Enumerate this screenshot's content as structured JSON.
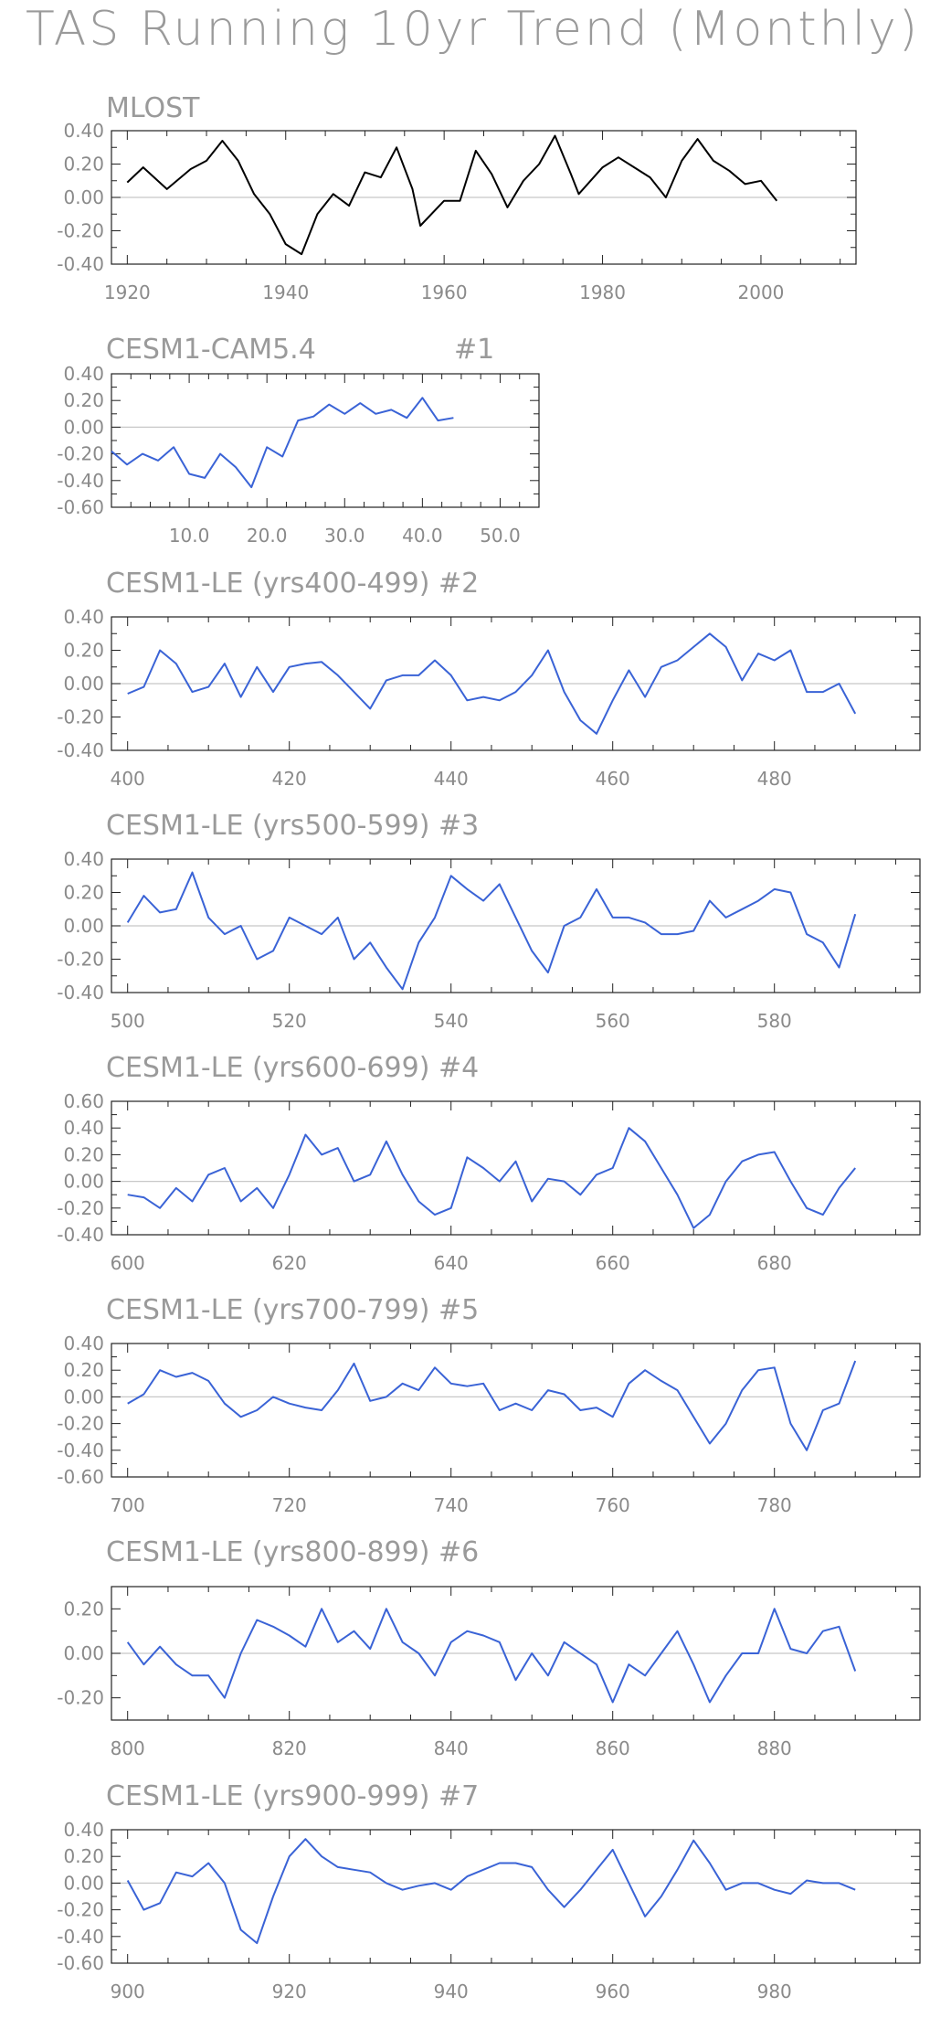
{
  "title": "TAS Running 10yr Trend (Monthly)",
  "chart_data": [
    {
      "type": "line",
      "title": "MLOST",
      "color": "#000000",
      "x": [
        1920,
        1922,
        1925,
        1928,
        1930,
        1932,
        1934,
        1936,
        1938,
        1940,
        1942,
        1944,
        1946,
        1948,
        1950,
        1952,
        1954,
        1956,
        1957,
        1960,
        1962,
        1964,
        1966,
        1968,
        1970,
        1972,
        1974,
        1976,
        1977,
        1980,
        1982,
        1984,
        1986,
        1988,
        1990,
        1992,
        1994,
        1996,
        1998,
        2000,
        2002
      ],
      "y": [
        0.09,
        0.18,
        0.05,
        0.17,
        0.22,
        0.34,
        0.22,
        0.02,
        -0.1,
        -0.28,
        -0.34,
        -0.1,
        0.02,
        -0.05,
        0.15,
        0.12,
        0.3,
        0.05,
        -0.17,
        -0.02,
        -0.02,
        0.28,
        0.14,
        -0.06,
        0.1,
        0.2,
        0.37,
        0.14,
        0.02,
        0.18,
        0.24,
        0.18,
        0.12,
        0.0,
        0.22,
        0.35,
        0.22,
        0.16,
        0.08,
        0.1,
        -0.02
      ],
      "xlim": [
        1918,
        2012
      ],
      "ylim": [
        -0.4,
        0.4
      ],
      "xticks": [
        1920,
        1940,
        1960,
        1980,
        2000
      ],
      "xtick_labels": [
        "1920",
        "1940",
        "1960",
        "1980",
        "2000"
      ],
      "yticks": [
        -0.4,
        -0.2,
        0.0,
        0.2,
        0.4
      ],
      "ytick_labels": [
        "-0.40",
        "-0.20",
        "0.00",
        "0.20",
        "0.40"
      ]
    },
    {
      "type": "line",
      "title": "CESM1-CAM5.4",
      "title_right": "#1",
      "color": "#3a63d6",
      "x": [
        0,
        2,
        4,
        6,
        8,
        10,
        12,
        14,
        16,
        18,
        20,
        22,
        24,
        26,
        28,
        30,
        32,
        34,
        36,
        38,
        40,
        42,
        44
      ],
      "y": [
        -0.18,
        -0.28,
        -0.2,
        -0.25,
        -0.15,
        -0.35,
        -0.38,
        -0.2,
        -0.3,
        -0.45,
        -0.15,
        -0.22,
        0.05,
        0.08,
        0.17,
        0.1,
        0.18,
        0.1,
        0.13,
        0.07,
        0.22,
        0.05,
        0.07
      ],
      "xlim": [
        0,
        55
      ],
      "ylim": [
        -0.6,
        0.4
      ],
      "xticks": [
        10,
        20,
        30,
        40,
        50
      ],
      "xtick_labels": [
        "10.0",
        "20.0",
        "30.0",
        "40.0",
        "50.0"
      ],
      "yticks": [
        -0.6,
        -0.4,
        -0.2,
        0.0,
        0.2,
        0.4
      ],
      "ytick_labels": [
        "-0.60",
        "-0.40",
        "-0.20",
        "0.00",
        "0.20",
        "0.40"
      ]
    },
    {
      "type": "line",
      "title": "CESM1-LE (yrs400-499) #2",
      "color": "#3a63d6",
      "x": [
        400,
        402,
        404,
        406,
        408,
        410,
        412,
        414,
        416,
        418,
        420,
        422,
        424,
        426,
        428,
        430,
        432,
        434,
        436,
        438,
        440,
        442,
        444,
        446,
        448,
        450,
        452,
        454,
        456,
        458,
        460,
        462,
        464,
        466,
        468,
        470,
        472,
        474,
        476,
        478,
        480,
        482,
        484,
        486,
        488,
        490
      ],
      "y": [
        -0.06,
        -0.02,
        0.2,
        0.12,
        -0.05,
        -0.02,
        0.12,
        -0.08,
        0.1,
        -0.05,
        0.1,
        0.12,
        0.13,
        0.05,
        -0.05,
        -0.15,
        0.02,
        0.05,
        0.05,
        0.14,
        0.05,
        -0.1,
        -0.08,
        -0.1,
        -0.05,
        0.05,
        0.2,
        -0.05,
        -0.22,
        -0.3,
        -0.1,
        0.08,
        -0.08,
        0.1,
        0.14,
        0.22,
        0.3,
        0.22,
        0.02,
        0.18,
        0.14,
        0.2,
        -0.05,
        -0.05,
        0.0,
        -0.18
      ],
      "xlim": [
        398,
        498
      ],
      "ylim": [
        -0.4,
        0.4
      ],
      "xticks": [
        400,
        420,
        440,
        460,
        480
      ],
      "xtick_labels": [
        "400",
        "420",
        "440",
        "460",
        "480"
      ],
      "yticks": [
        -0.4,
        -0.2,
        0.0,
        0.2,
        0.4
      ],
      "ytick_labels": [
        "-0.40",
        "-0.20",
        "0.00",
        "0.20",
        "0.40"
      ]
    },
    {
      "type": "line",
      "title": "CESM1-LE (yrs500-599) #3",
      "color": "#3a63d6",
      "x": [
        500,
        502,
        504,
        506,
        508,
        510,
        512,
        514,
        516,
        518,
        520,
        522,
        524,
        526,
        528,
        530,
        532,
        534,
        536,
        538,
        540,
        542,
        544,
        546,
        548,
        550,
        552,
        554,
        556,
        558,
        560,
        562,
        564,
        566,
        568,
        570,
        572,
        574,
        576,
        578,
        580,
        582,
        584,
        586,
        588,
        590
      ],
      "y": [
        0.02,
        0.18,
        0.08,
        0.1,
        0.32,
        0.05,
        -0.05,
        0.0,
        -0.2,
        -0.15,
        0.05,
        0.0,
        -0.05,
        0.05,
        -0.2,
        -0.1,
        -0.25,
        -0.38,
        -0.1,
        0.05,
        0.3,
        0.22,
        0.15,
        0.25,
        0.05,
        -0.15,
        -0.28,
        0.0,
        0.05,
        0.22,
        0.05,
        0.05,
        0.02,
        -0.05,
        -0.05,
        -0.03,
        0.15,
        0.05,
        0.1,
        0.15,
        0.22,
        0.2,
        -0.05,
        -0.1,
        -0.25,
        0.07
      ],
      "xlim": [
        498,
        598
      ],
      "ylim": [
        -0.4,
        0.4
      ],
      "xticks": [
        500,
        520,
        540,
        560,
        580
      ],
      "xtick_labels": [
        "500",
        "520",
        "540",
        "560",
        "580"
      ],
      "yticks": [
        -0.4,
        -0.2,
        0.0,
        0.2,
        0.4
      ],
      "ytick_labels": [
        "-0.40",
        "-0.20",
        "0.00",
        "0.20",
        "0.40"
      ]
    },
    {
      "type": "line",
      "title": "CESM1-LE (yrs600-699) #4",
      "color": "#3a63d6",
      "x": [
        600,
        602,
        604,
        606,
        608,
        610,
        612,
        614,
        616,
        618,
        620,
        622,
        624,
        626,
        628,
        630,
        632,
        634,
        636,
        638,
        640,
        642,
        644,
        646,
        648,
        650,
        652,
        654,
        656,
        658,
        660,
        662,
        664,
        666,
        668,
        670,
        672,
        674,
        676,
        678,
        680,
        682,
        684,
        686,
        688,
        690
      ],
      "y": [
        -0.1,
        -0.12,
        -0.2,
        -0.05,
        -0.15,
        0.05,
        0.1,
        -0.15,
        -0.05,
        -0.2,
        0.05,
        0.35,
        0.2,
        0.25,
        0.0,
        0.05,
        0.3,
        0.05,
        -0.15,
        -0.25,
        -0.2,
        0.18,
        0.1,
        0.0,
        0.15,
        -0.15,
        0.02,
        0.0,
        -0.1,
        0.05,
        0.1,
        0.4,
        0.3,
        0.1,
        -0.1,
        -0.35,
        -0.25,
        0.0,
        0.15,
        0.2,
        0.22,
        0.0,
        -0.2,
        -0.25,
        -0.05,
        0.1
      ],
      "xlim": [
        598,
        698
      ],
      "ylim": [
        -0.4,
        0.6
      ],
      "xticks": [
        600,
        620,
        640,
        660,
        680
      ],
      "xtick_labels": [
        "600",
        "620",
        "640",
        "660",
        "680"
      ],
      "yticks": [
        -0.4,
        -0.2,
        0.0,
        0.2,
        0.4,
        0.6
      ],
      "ytick_labels": [
        "-0.40",
        "-0.20",
        "0.00",
        "0.20",
        "0.40",
        "0.60"
      ]
    },
    {
      "type": "line",
      "title": "CESM1-LE (yrs700-799) #5",
      "color": "#3a63d6",
      "x": [
        700,
        702,
        704,
        706,
        708,
        710,
        712,
        714,
        716,
        718,
        720,
        722,
        724,
        726,
        728,
        730,
        732,
        734,
        736,
        738,
        740,
        742,
        744,
        746,
        748,
        750,
        752,
        754,
        756,
        758,
        760,
        762,
        764,
        766,
        768,
        770,
        772,
        774,
        776,
        778,
        780,
        782,
        784,
        786,
        788,
        790
      ],
      "y": [
        -0.05,
        0.02,
        0.2,
        0.15,
        0.18,
        0.12,
        -0.05,
        -0.15,
        -0.1,
        0.0,
        -0.05,
        -0.08,
        -0.1,
        0.05,
        0.25,
        -0.03,
        0.0,
        0.1,
        0.05,
        0.22,
        0.1,
        0.08,
        0.1,
        -0.1,
        -0.05,
        -0.1,
        0.05,
        0.02,
        -0.1,
        -0.08,
        -0.15,
        0.1,
        0.2,
        0.12,
        0.05,
        -0.15,
        -0.35,
        -0.2,
        0.05,
        0.2,
        0.22,
        -0.2,
        -0.4,
        -0.1,
        -0.05,
        0.27
      ],
      "xlim": [
        698,
        798
      ],
      "ylim": [
        -0.6,
        0.4
      ],
      "xticks": [
        700,
        720,
        740,
        760,
        780
      ],
      "xtick_labels": [
        "700",
        "720",
        "740",
        "760",
        "780"
      ],
      "yticks": [
        -0.6,
        -0.4,
        -0.2,
        0.0,
        0.2,
        0.4
      ],
      "ytick_labels": [
        "-0.60",
        "-0.40",
        "-0.20",
        "0.00",
        "0.20",
        "0.40"
      ]
    },
    {
      "type": "line",
      "title": "CESM1-LE (yrs800-899) #6",
      "color": "#3a63d6",
      "x": [
        800,
        802,
        804,
        806,
        808,
        810,
        812,
        814,
        816,
        818,
        820,
        822,
        824,
        826,
        828,
        830,
        832,
        834,
        836,
        838,
        840,
        842,
        844,
        846,
        848,
        850,
        852,
        854,
        856,
        858,
        860,
        862,
        864,
        866,
        868,
        870,
        872,
        874,
        876,
        878,
        880,
        882,
        884,
        886,
        888,
        890
      ],
      "y": [
        0.05,
        -0.05,
        0.03,
        -0.05,
        -0.1,
        -0.1,
        -0.2,
        0.0,
        0.15,
        0.12,
        0.08,
        0.03,
        0.2,
        0.05,
        0.1,
        0.02,
        0.2,
        0.05,
        0.0,
        -0.1,
        0.05,
        0.1,
        0.08,
        0.05,
        -0.12,
        0.0,
        -0.1,
        0.05,
        0.0,
        -0.05,
        -0.22,
        -0.05,
        -0.1,
        0.0,
        0.1,
        -0.05,
        -0.22,
        -0.1,
        0.0,
        0.0,
        0.2,
        0.02,
        0.0,
        0.1,
        0.12,
        -0.08
      ],
      "xlim": [
        798,
        898
      ],
      "ylim": [
        -0.3,
        0.3
      ],
      "xticks": [
        800,
        820,
        840,
        860,
        880
      ],
      "xtick_labels": [
        "800",
        "820",
        "840",
        "860",
        "880"
      ],
      "yticks": [
        -0.2,
        0.0,
        0.2
      ],
      "ytick_labels": [
        "-0.20",
        "0.00",
        "0.20"
      ]
    },
    {
      "type": "line",
      "title": "CESM1-LE (yrs900-999) #7",
      "color": "#3a63d6",
      "x": [
        900,
        902,
        904,
        906,
        908,
        910,
        912,
        914,
        916,
        918,
        920,
        922,
        924,
        926,
        928,
        930,
        932,
        934,
        936,
        938,
        940,
        942,
        944,
        946,
        948,
        950,
        952,
        954,
        956,
        958,
        960,
        962,
        964,
        966,
        968,
        970,
        972,
        974,
        976,
        978,
        980,
        982,
        984,
        986,
        988,
        990
      ],
      "y": [
        0.02,
        -0.2,
        -0.15,
        0.08,
        0.05,
        0.15,
        0.0,
        -0.35,
        -0.45,
        -0.1,
        0.2,
        0.33,
        0.2,
        0.12,
        0.1,
        0.08,
        0.0,
        -0.05,
        -0.02,
        0.0,
        -0.05,
        0.05,
        0.1,
        0.15,
        0.15,
        0.12,
        -0.05,
        -0.18,
        -0.05,
        0.1,
        0.25,
        0.0,
        -0.25,
        -0.1,
        0.1,
        0.32,
        0.15,
        -0.05,
        0.0,
        0.0,
        -0.05,
        -0.08,
        0.02,
        0.0,
        0.0,
        -0.05
      ],
      "xlim": [
        898,
        998
      ],
      "ylim": [
        -0.6,
        0.4
      ],
      "xticks": [
        900,
        920,
        940,
        960,
        980
      ],
      "xtick_labels": [
        "900",
        "920",
        "940",
        "960",
        "980"
      ],
      "yticks": [
        -0.6,
        -0.4,
        -0.2,
        0.0,
        0.2,
        0.4
      ],
      "ytick_labels": [
        "-0.60",
        "-0.40",
        "-0.20",
        "0.00",
        "0.20",
        "0.40"
      ]
    }
  ]
}
